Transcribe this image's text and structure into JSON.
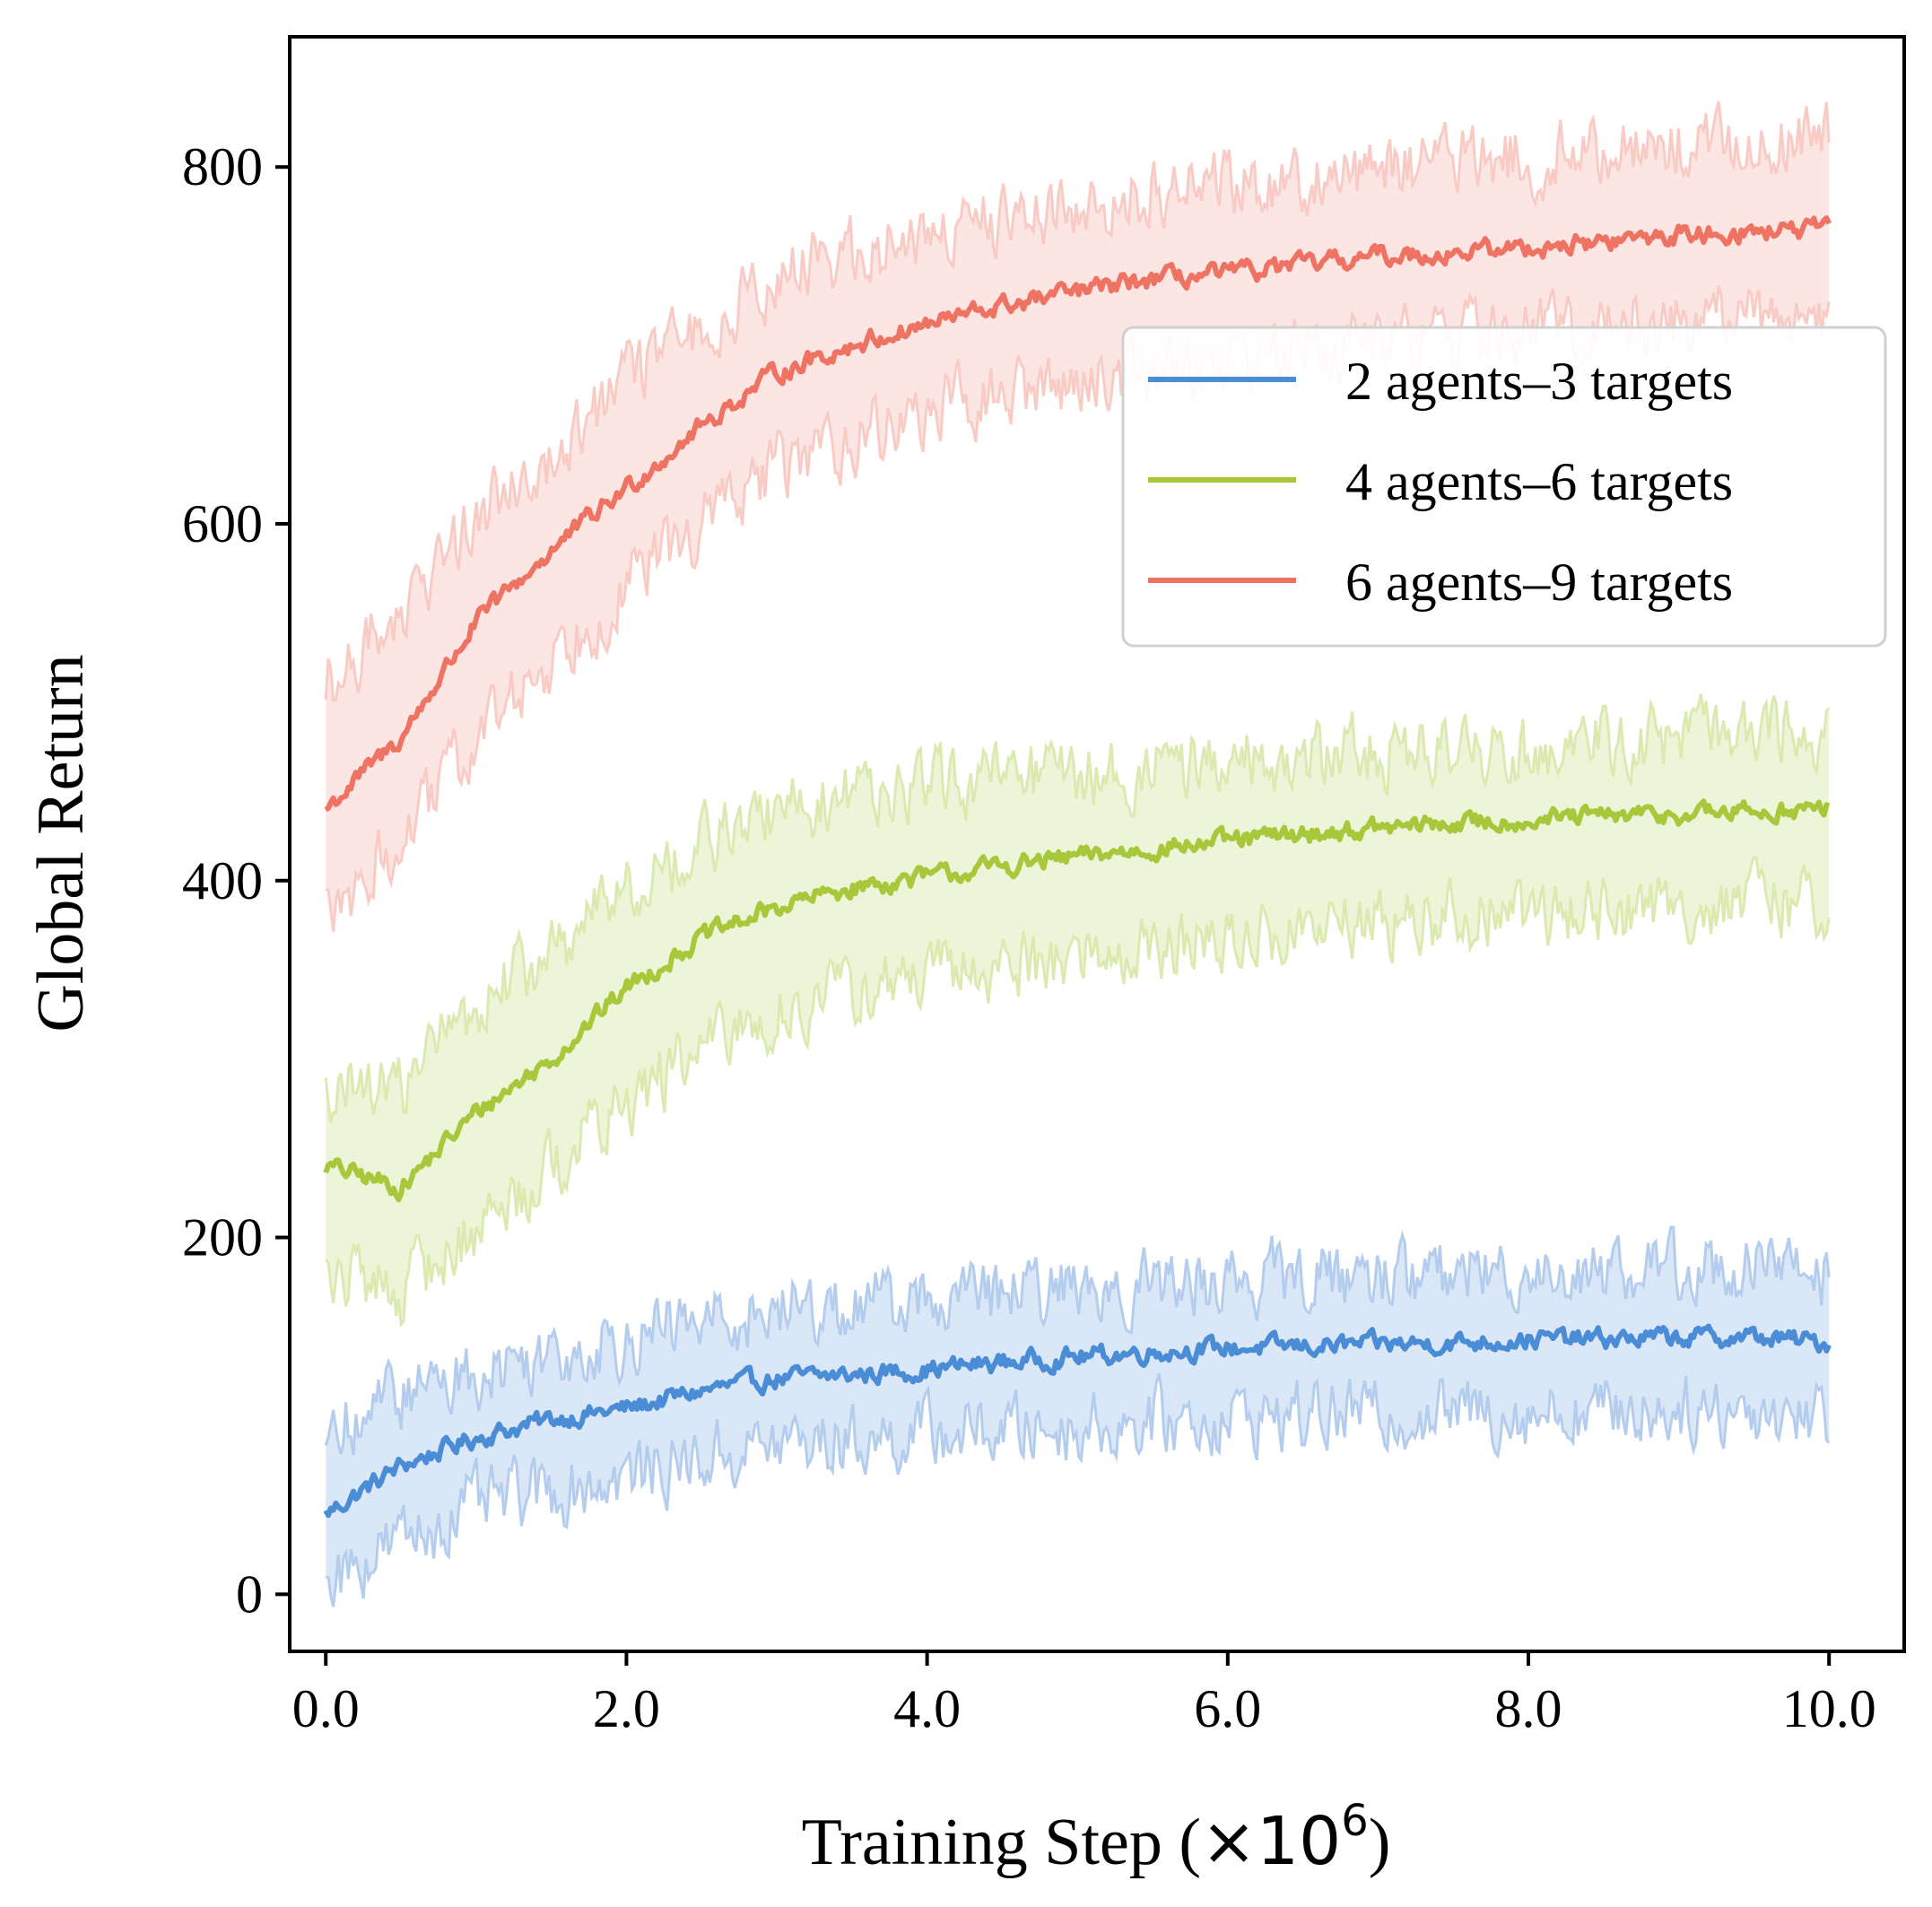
{
  "chart_data": {
    "type": "line",
    "xlabel_main": "Training Step (",
    "xlabel_mult": "×10",
    "xlabel_exp": "6",
    "xlabel_close": ")",
    "ylabel": "Global Return",
    "xlim": [
      -0.24,
      10.5
    ],
    "ylim": [
      -32,
      873
    ],
    "x_ticks": [
      0,
      2,
      4,
      6,
      8,
      10
    ],
    "x_tick_labels": [
      "0.0",
      "2.0",
      "4.0",
      "6.0",
      "8.0",
      "10.0"
    ],
    "y_ticks": [
      0,
      200,
      400,
      600,
      800
    ],
    "y_tick_labels": [
      "0",
      "200",
      "400",
      "600",
      "800"
    ],
    "legend_position": "upper-right",
    "series": [
      {
        "name": "2 agents–3 targets",
        "color": "#4a8cd6",
        "band_color": "#aec9ec",
        "x": [
          0,
          0.5,
          1,
          1.5,
          2,
          2.5,
          3,
          3.5,
          4,
          4.5,
          5,
          5.5,
          6,
          6.5,
          7,
          7.5,
          8,
          8.5,
          9,
          9.5,
          10
        ],
        "mean": [
          45,
          72,
          88,
          98,
          104,
          114,
          121,
          123,
          126,
          130,
          133,
          136,
          138,
          139,
          140,
          141,
          143,
          143,
          144,
          144,
          141
        ],
        "lower": [
          10,
          30,
          50,
          58,
          66,
          76,
          84,
          86,
          90,
          92,
          94,
          97,
          99,
          100,
          101,
          102,
          103,
          103,
          104,
          104,
          100
        ],
        "upper": [
          90,
          112,
          125,
          136,
          144,
          152,
          160,
          162,
          165,
          168,
          171,
          174,
          177,
          178,
          179,
          180,
          182,
          182,
          183,
          183,
          180
        ]
      },
      {
        "name": "4 agents–6 targets",
        "color": "#a7c83b",
        "band_color": "#d8e8aa",
        "x": [
          0,
          0.5,
          1,
          1.5,
          2,
          2.5,
          3,
          3.5,
          4,
          4.5,
          5,
          5.5,
          6,
          6.5,
          7,
          7.5,
          8,
          8.5,
          9,
          9.5,
          10
        ],
        "mean": [
          240,
          228,
          270,
          300,
          340,
          368,
          385,
          396,
          402,
          408,
          413,
          418,
          422,
          426,
          429,
          432,
          434,
          436,
          437,
          439,
          440
        ],
        "lower": [
          180,
          170,
          205,
          240,
          275,
          305,
          325,
          338,
          345,
          352,
          358,
          362,
          366,
          372,
          376,
          380,
          382,
          384,
          386,
          388,
          388
        ],
        "upper": [
          280,
          285,
          330,
          360,
          395,
          420,
          438,
          448,
          452,
          456,
          460,
          463,
          466,
          470,
          472,
          474,
          476,
          478,
          480,
          482,
          484
        ]
      },
      {
        "name": "6 agents–9 targets",
        "color": "#ef7363",
        "band_color": "#f8c7c0",
        "x": [
          0,
          0.5,
          1,
          1.5,
          2,
          2.5,
          3,
          3.5,
          4,
          4.5,
          5,
          5.5,
          6,
          6.5,
          7,
          7.5,
          8,
          8.5,
          9,
          9.5,
          10
        ],
        "mean": [
          440,
          480,
          545,
          585,
          620,
          655,
          685,
          700,
          712,
          722,
          730,
          737,
          740,
          745,
          750,
          752,
          755,
          758,
          762,
          764,
          765
        ],
        "lower": [
          380,
          420,
          480,
          525,
          565,
          600,
          632,
          648,
          662,
          672,
          680,
          688,
          692,
          697,
          702,
          705,
          708,
          711,
          714,
          717,
          718
        ],
        "upper": [
          510,
          550,
          605,
          640,
          680,
          710,
          738,
          752,
          762,
          772,
          780,
          786,
          790,
          795,
          800,
          803,
          806,
          808,
          812,
          814,
          815
        ]
      }
    ]
  }
}
